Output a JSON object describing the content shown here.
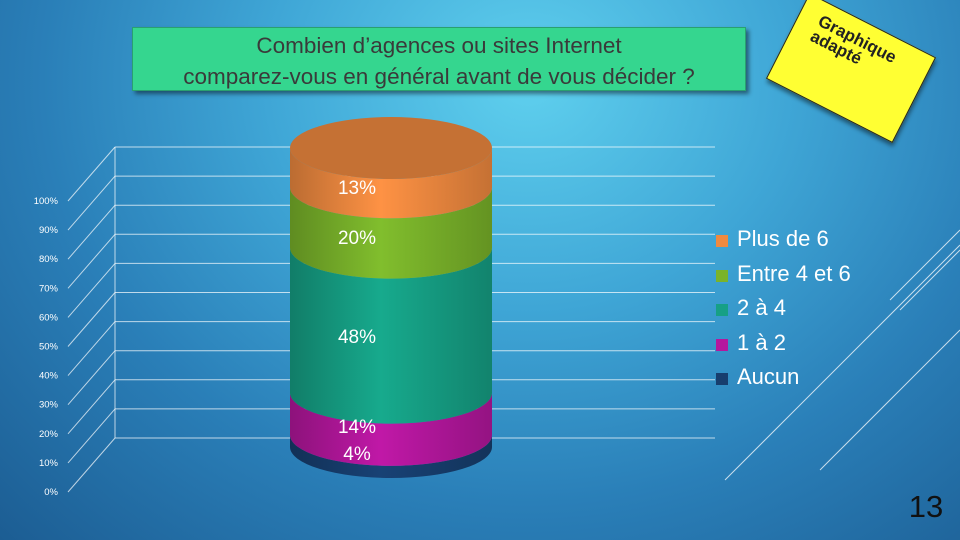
{
  "slide": {
    "title": "Combien d’agences ou sites Internet comparez-vous en général avant de vous décider ?",
    "title_line1": "Combien d’agences ou sites Internet",
    "title_line2": "comparez-vous en général avant de vous décider ?",
    "note_line1": "Graphique",
    "note_line2": "adapté",
    "page_number": "13"
  },
  "chart_data": {
    "type": "bar",
    "stacked": true,
    "shape": "cylinder",
    "y_ticks": [
      "0%",
      "10%",
      "20%",
      "30%",
      "40%",
      "50%",
      "60%",
      "70%",
      "80%",
      "90%",
      "100%"
    ],
    "ylim": [
      0,
      100
    ],
    "legend_position": "right",
    "series": [
      {
        "name": "Aucun",
        "value": 4,
        "label": "4%",
        "color": "#173e6e"
      },
      {
        "name": "1 à 2",
        "value": 14,
        "label": "14%",
        "color": "#b5179e"
      },
      {
        "name": "2 à 4",
        "value": 48,
        "label": "48%",
        "color": "#16a085"
      },
      {
        "name": "Entre 4 et 6",
        "value": 20,
        "label": "20%",
        "color": "#7ab32a"
      },
      {
        "name": "Plus de 6",
        "value": 13,
        "label": "13%",
        "color": "#f08a40"
      }
    ],
    "legend": [
      "Plus de 6",
      "Entre 4 et 6",
      "2 à 4",
      "1 à 2",
      "Aucun"
    ]
  }
}
